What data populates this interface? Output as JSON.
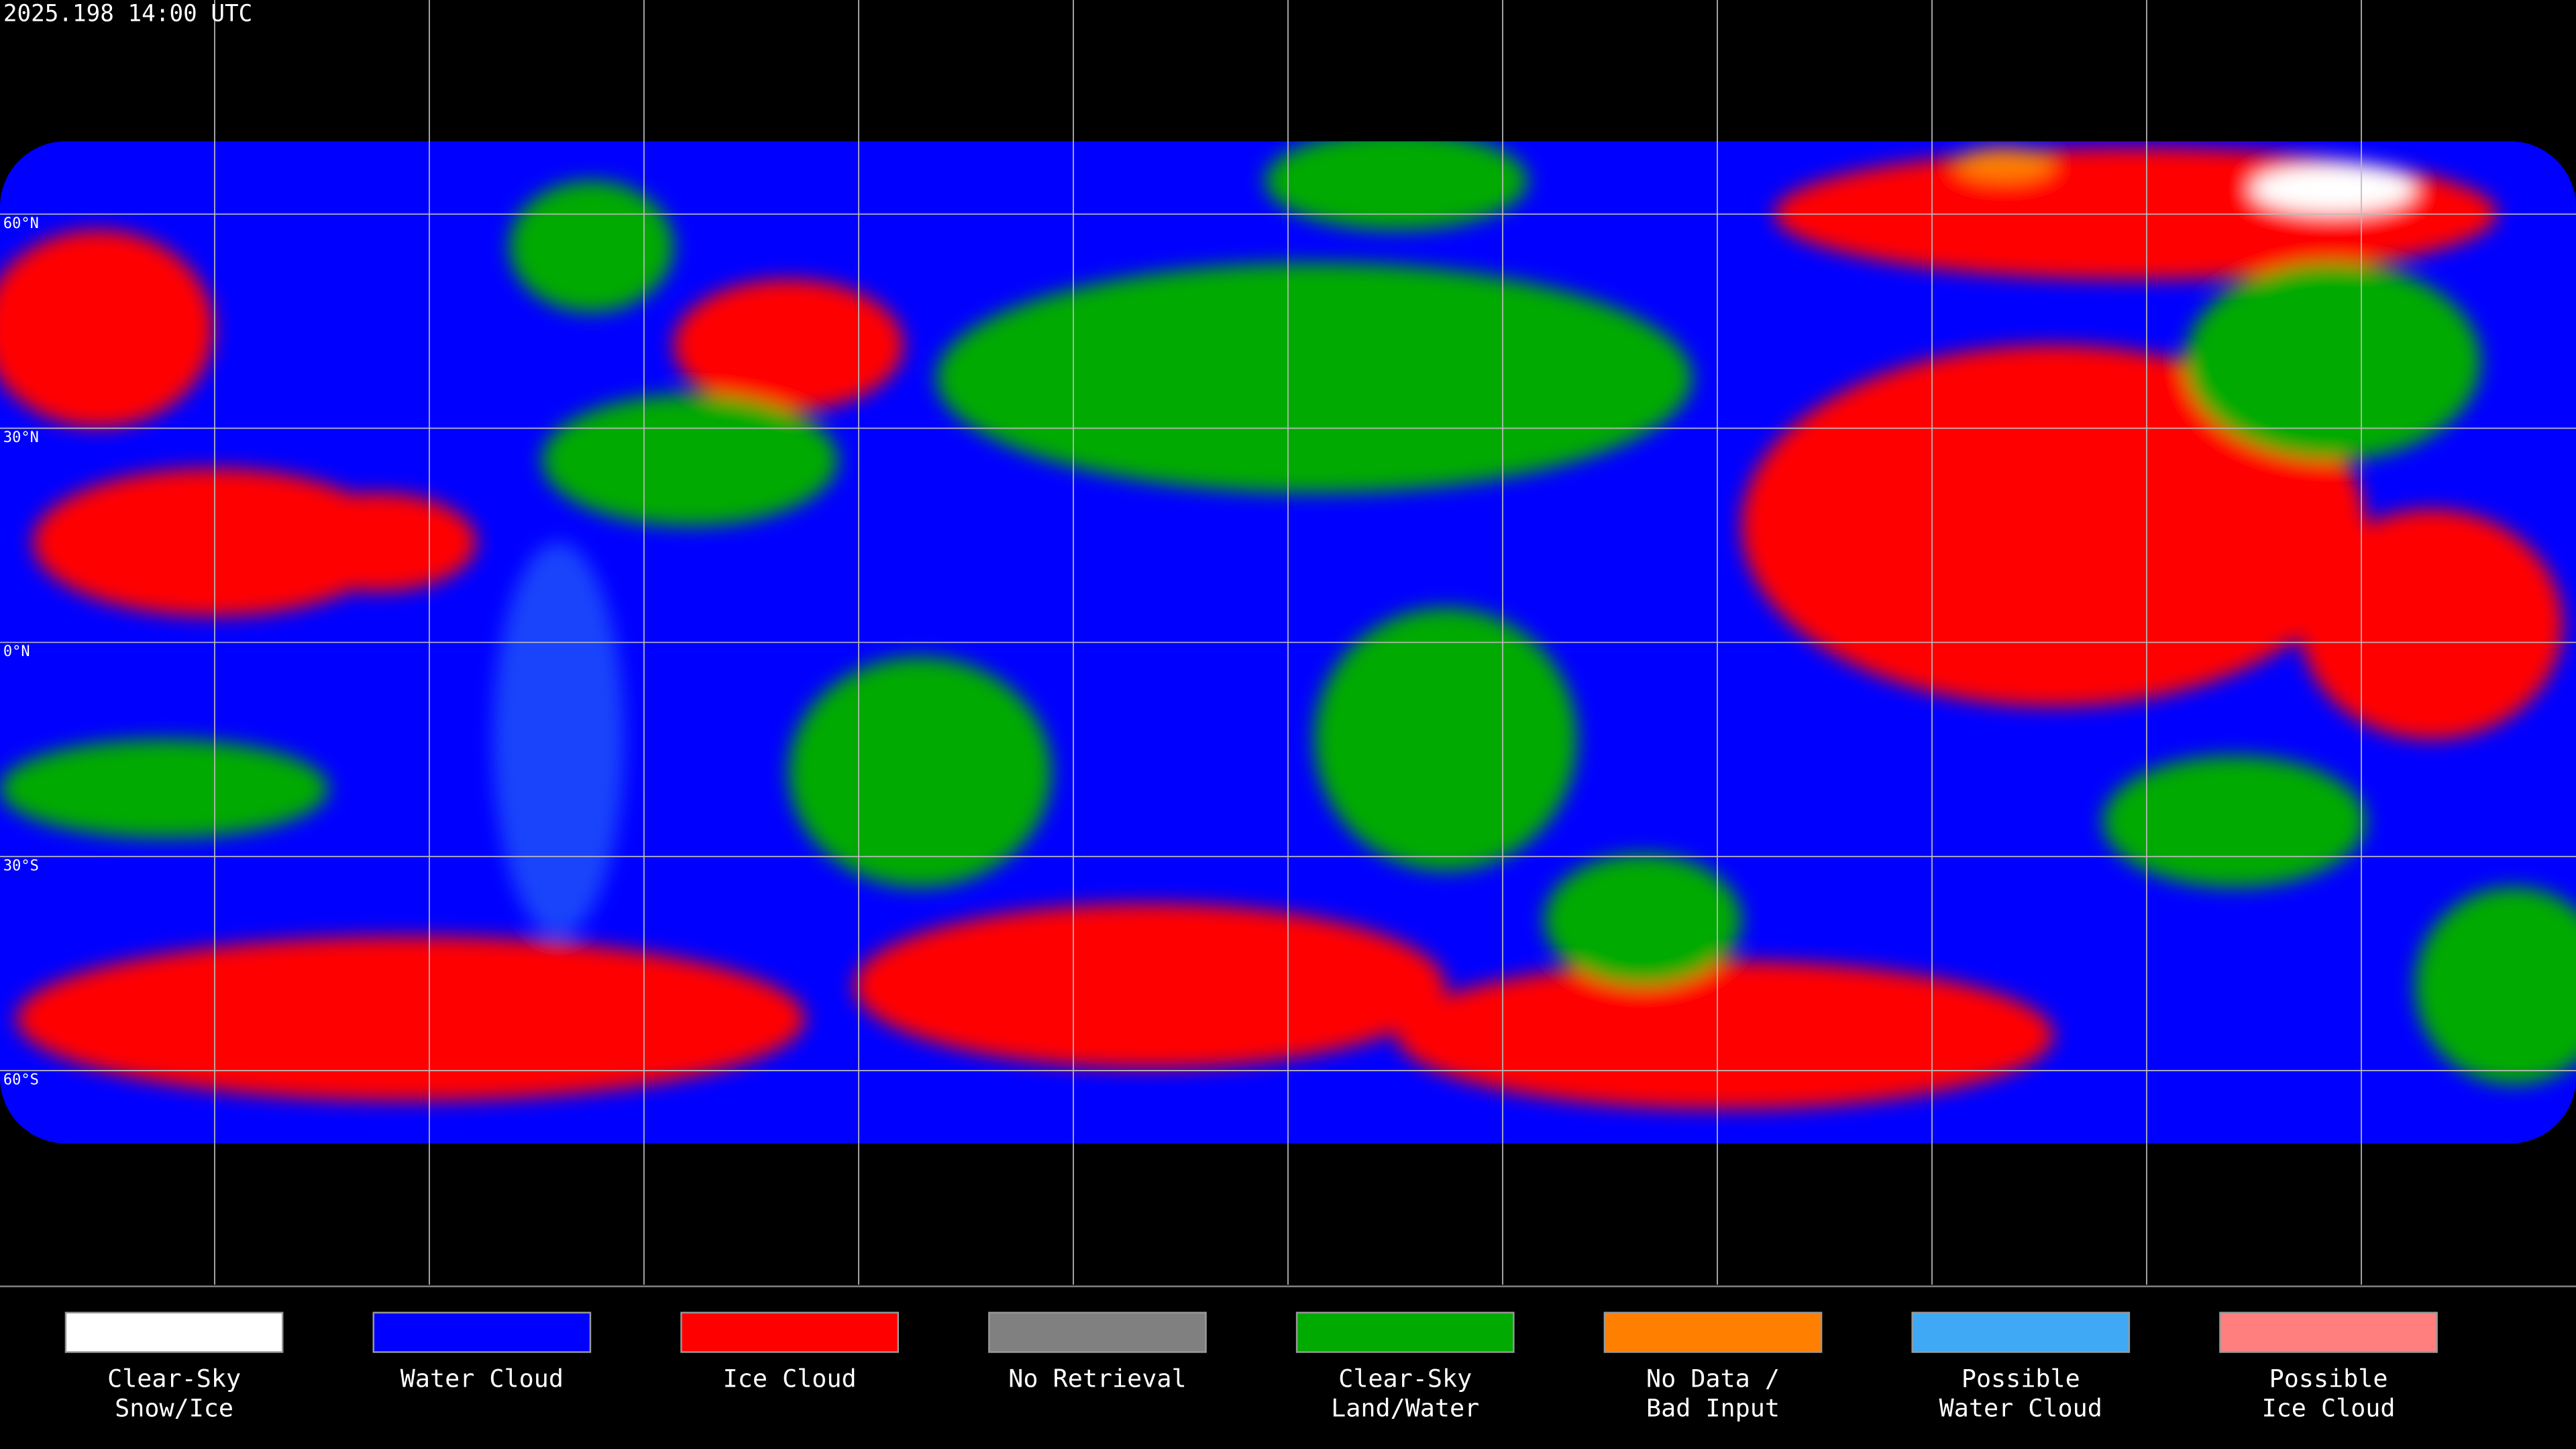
{
  "header": {
    "timestamp": "2025.198 14:00 UTC"
  },
  "map": {
    "latitude_labels": [
      "60°N",
      "30°N",
      "0°N",
      "30°S",
      "60°S"
    ]
  },
  "legend": {
    "items": [
      {
        "label": [
          "Clear-Sky",
          "Snow/Ice"
        ],
        "color": "#ffffff"
      },
      {
        "label": [
          "Water Cloud"
        ],
        "color": "#0000ff"
      },
      {
        "label": [
          "Ice Cloud"
        ],
        "color": "#ff0000"
      },
      {
        "label": [
          "No Retrieval"
        ],
        "color": "#808080"
      },
      {
        "label": [
          "Clear-Sky",
          "Land/Water"
        ],
        "color": "#00aa00"
      },
      {
        "label": [
          "No Data /",
          "Bad Input"
        ],
        "color": "#ff8000"
      },
      {
        "label": [
          "Possible",
          "Water Cloud"
        ],
        "color": "#3fa9f5"
      },
      {
        "label": [
          "Possible",
          "Ice Cloud"
        ],
        "color": "#ff7f7f"
      }
    ]
  }
}
